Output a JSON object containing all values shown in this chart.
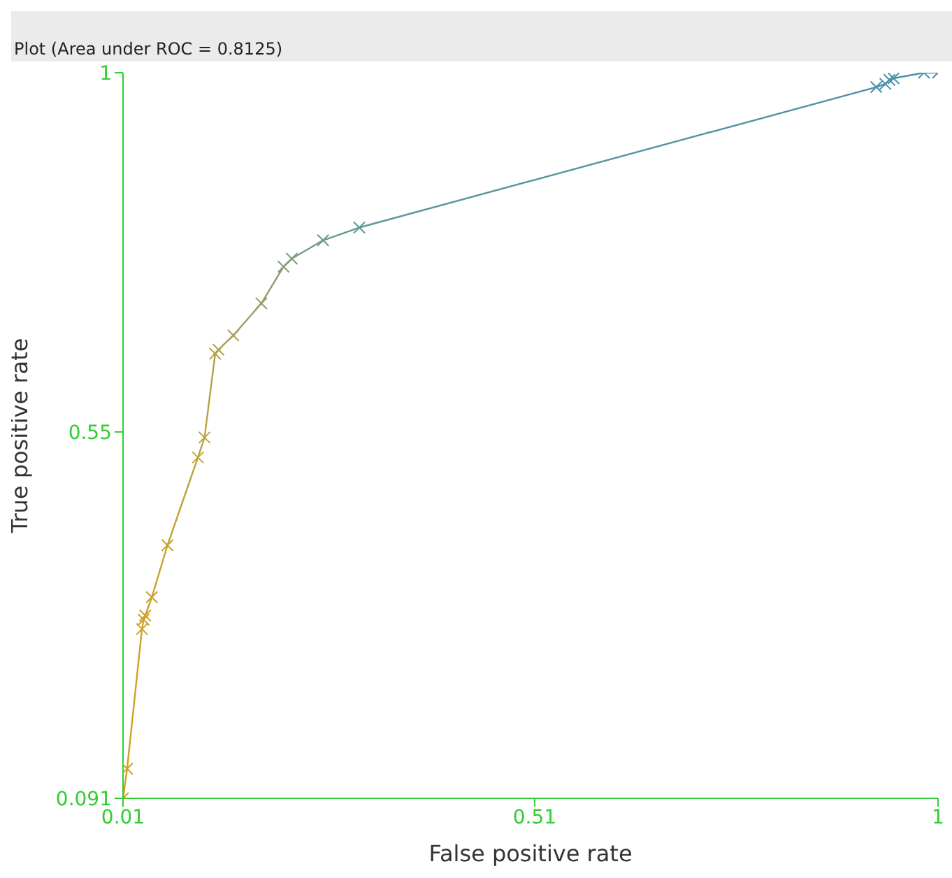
{
  "chart_data": {
    "type": "line",
    "title": "Plot (Area under ROC = 0.8125)",
    "xlabel": "False positive rate",
    "ylabel": "True positive rate",
    "x": [
      0.01,
      0.015,
      0.033,
      0.035,
      0.037,
      0.045,
      0.064,
      0.101,
      0.109,
      0.122,
      0.126,
      0.144,
      0.178,
      0.205,
      0.215,
      0.253,
      0.297,
      0.925,
      0.936,
      0.941,
      0.946,
      0.983,
      1
    ],
    "values": [
      0.091,
      0.128,
      0.303,
      0.315,
      0.32,
      0.343,
      0.408,
      0.518,
      0.543,
      0.648,
      0.653,
      0.671,
      0.711,
      0.757,
      0.767,
      0.79,
      0.806,
      0.982,
      0.986,
      0.991,
      0.993,
      1,
      1
    ],
    "colors": [
      "#d0a020",
      "#d0a020",
      "#cca228",
      "#cca228",
      "#cca228",
      "#c8a22c",
      "#c4a230",
      "#bea23a",
      "#bca23e",
      "#b4a048",
      "#b2a04a",
      "#a89e56",
      "#989c66",
      "#869a78",
      "#7e9a80",
      "#6a9890",
      "#5e969a",
      "#4a92a8",
      "#4a92a8",
      "#4a92a8",
      "#4a92a8",
      "#4a92a8",
      "#4a92a8"
    ],
    "xlim": [
      0.01,
      1
    ],
    "ylim": [
      0.091,
      1
    ],
    "xticks": [
      0.01,
      0.51,
      1
    ],
    "yticks": [
      0.091,
      0.55,
      1
    ],
    "grid": false,
    "marker": "cross",
    "line_style": "solid"
  }
}
